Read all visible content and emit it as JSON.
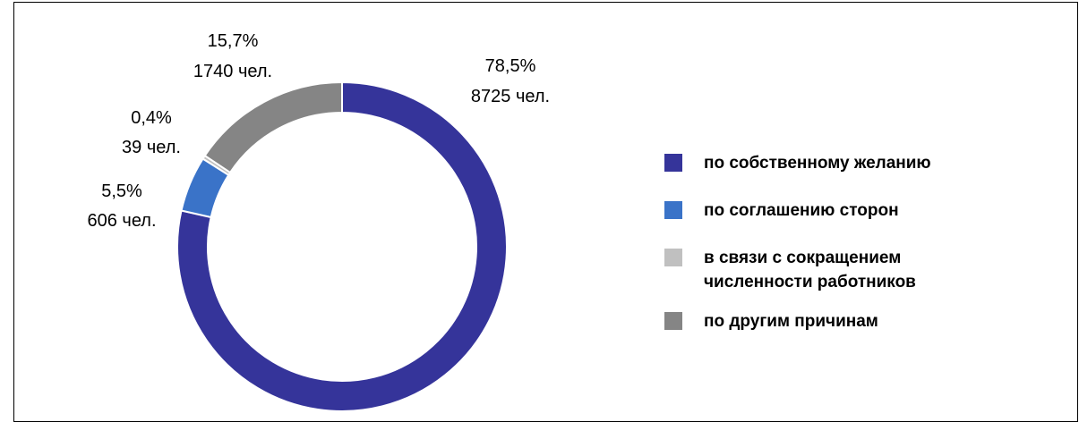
{
  "chart_data": {
    "type": "pie",
    "donut": true,
    "title": "",
    "slices": [
      {
        "name": "по собственному желанию",
        "percent": 78.5,
        "value": 8725,
        "pct_label": "78,5%",
        "count_label": "8725 чел.",
        "color": "#35349A"
      },
      {
        "name": "по соглашению сторон",
        "percent": 5.5,
        "value": 606,
        "pct_label": "5,5%",
        "count_label": "606 чел.",
        "color": "#3A73C8"
      },
      {
        "name": "в связи с сокращением численности работников",
        "percent": 0.4,
        "value": 39,
        "pct_label": "0,4%",
        "count_label": "39 чел.",
        "color": "#C0C0C0"
      },
      {
        "name": "по другим причинам",
        "percent": 15.7,
        "value": 1740,
        "pct_label": "15,7%",
        "count_label": "1740 чел.",
        "color": "#858585"
      }
    ],
    "legend": {
      "position": "right",
      "items": [
        [
          "по собственному желанию"
        ],
        [
          "по соглашению сторон"
        ],
        [
          "в связи с сокращением",
          "численности работников"
        ],
        [
          "по другим причинам"
        ]
      ]
    }
  }
}
